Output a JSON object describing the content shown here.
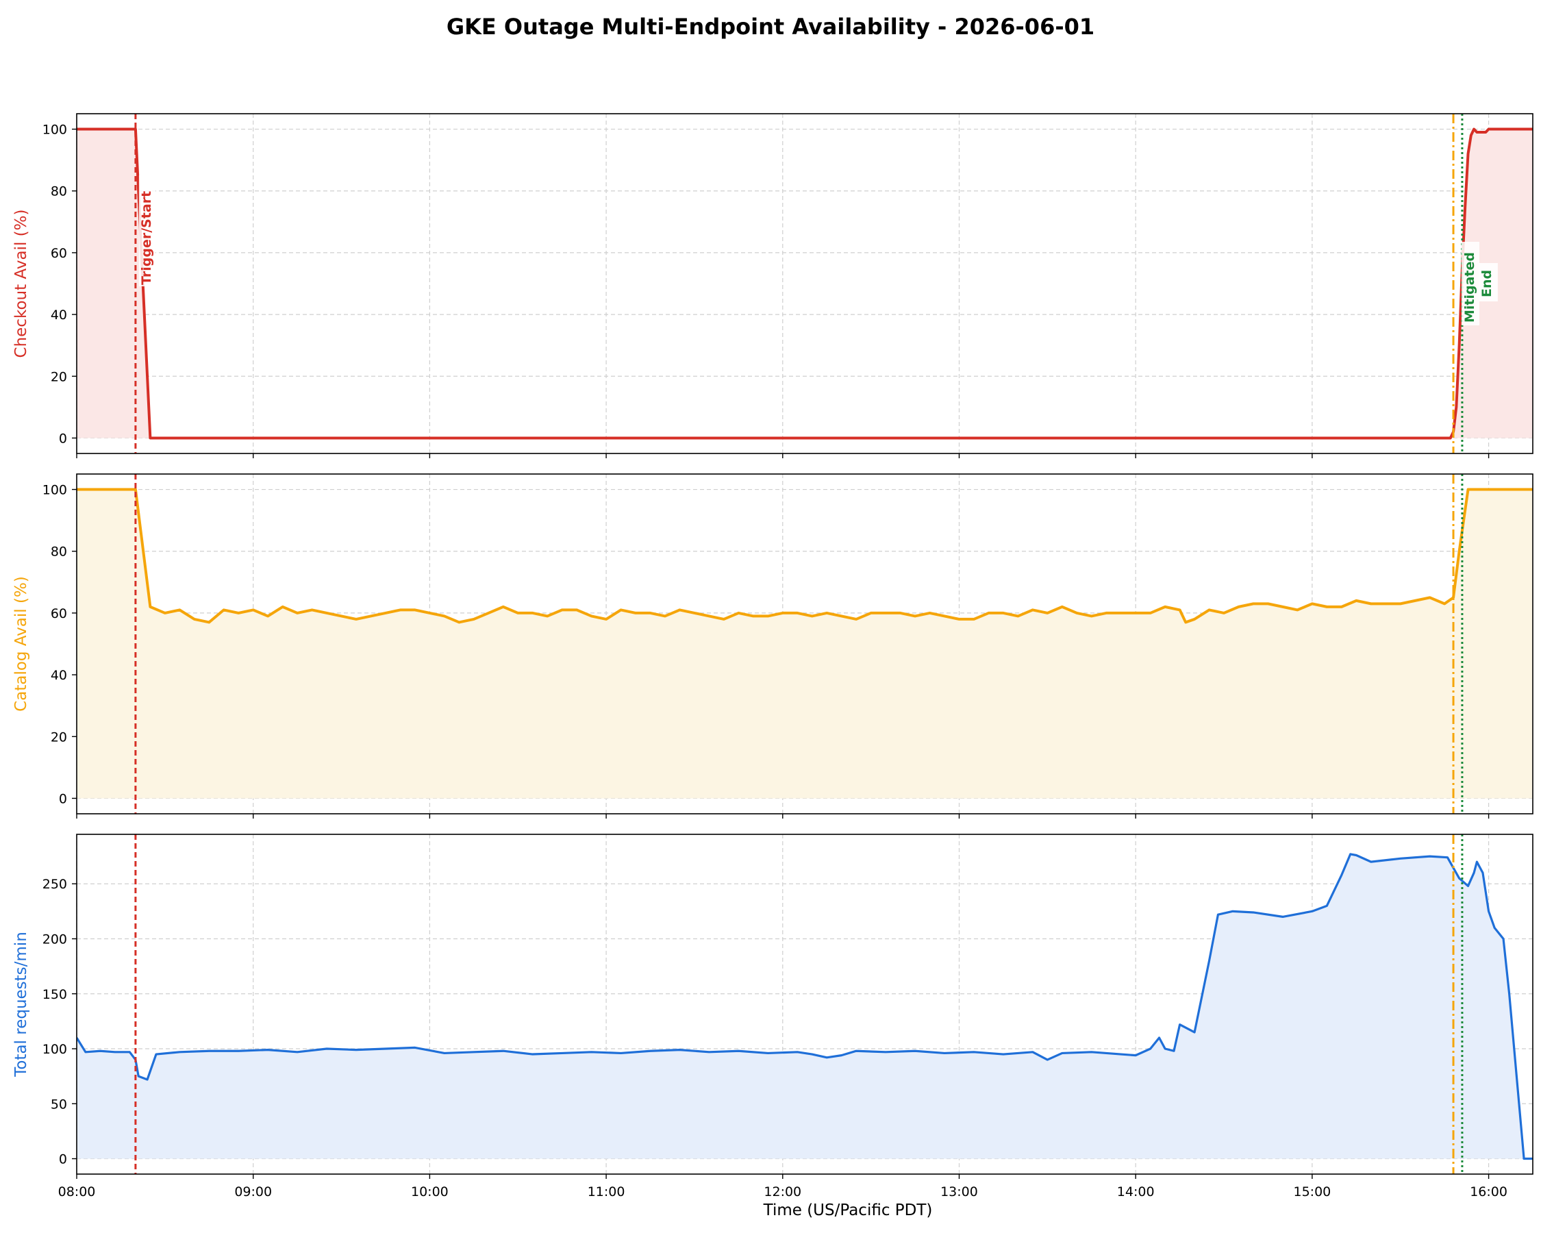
{
  "chart_data": {
    "type": "line",
    "title": "GKE Outage Multi-Endpoint Availability - 2026-06-01",
    "xlabel": "Time (US/Pacific PDT)",
    "x_range": [
      "08:00",
      "16:15"
    ],
    "x_ticks": [
      "08:00",
      "09:00",
      "10:00",
      "11:00",
      "12:00",
      "13:00",
      "14:00",
      "15:00",
      "16:00"
    ],
    "grid": true,
    "colors": {
      "checkout": "#d62f26",
      "catalog": "#f5a50a",
      "requests": "#1f6fd8",
      "trigger": "#d62f26",
      "mitigated": "#f5a50a",
      "end": "#1b8a3a"
    },
    "annotations": [
      {
        "label": "Trigger/Start",
        "time": "08:20",
        "style": "dashed",
        "color_key": "trigger"
      },
      {
        "label": "Mitigated",
        "time": "15:48",
        "style": "dashdot",
        "color_key": "mitigated"
      },
      {
        "label": "End",
        "time": "15:51",
        "style": "dotted",
        "color_key": "end"
      }
    ],
    "panels": [
      {
        "key": "checkout",
        "ylabel": "Checkout Avail (%)",
        "ylim": [
          -5,
          105
        ],
        "y_ticks": [
          0,
          20,
          40,
          60,
          80,
          100
        ],
        "series": [
          {
            "points": [
              [
                "08:00",
                100
              ],
              [
                "08:20",
                100
              ],
              [
                "08:25",
                0
              ],
              [
                "15:47",
                0
              ],
              [
                "15:48",
                2
              ],
              [
                "15:49",
                10
              ],
              [
                "15:50",
                30
              ],
              [
                "15:51",
                55
              ],
              [
                "15:52",
                75
              ],
              [
                "15:53",
                92
              ],
              [
                "15:54",
                98
              ],
              [
                "15:55",
                100
              ],
              [
                "15:56",
                99
              ],
              [
                "15:58",
                99
              ],
              [
                "15:59",
                99
              ],
              [
                "16:00",
                100
              ],
              [
                "16:15",
                100
              ]
            ]
          }
        ]
      },
      {
        "key": "catalog",
        "ylabel": "Catalog Avail (%)",
        "ylim": [
          -5,
          105
        ],
        "y_ticks": [
          0,
          20,
          40,
          60,
          80,
          100
        ],
        "series": [
          {
            "points": [
              [
                "08:00",
                100
              ],
              [
                "08:20",
                100
              ],
              [
                "08:25",
                62
              ],
              [
                "08:30",
                60
              ],
              [
                "08:35",
                61
              ],
              [
                "08:40",
                58
              ],
              [
                "08:45",
                57
              ],
              [
                "08:50",
                61
              ],
              [
                "08:55",
                60
              ],
              [
                "09:00",
                61
              ],
              [
                "09:05",
                59
              ],
              [
                "09:10",
                62
              ],
              [
                "09:15",
                60
              ],
              [
                "09:20",
                61
              ],
              [
                "09:25",
                60
              ],
              [
                "09:30",
                59
              ],
              [
                "09:35",
                58
              ],
              [
                "09:40",
                59
              ],
              [
                "09:45",
                60
              ],
              [
                "09:50",
                61
              ],
              [
                "09:55",
                61
              ],
              [
                "10:00",
                60
              ],
              [
                "10:05",
                59
              ],
              [
                "10:10",
                57
              ],
              [
                "10:15",
                58
              ],
              [
                "10:20",
                60
              ],
              [
                "10:25",
                62
              ],
              [
                "10:30",
                60
              ],
              [
                "10:35",
                60
              ],
              [
                "10:40",
                59
              ],
              [
                "10:45",
                61
              ],
              [
                "10:50",
                61
              ],
              [
                "10:55",
                59
              ],
              [
                "11:00",
                58
              ],
              [
                "11:05",
                61
              ],
              [
                "11:10",
                60
              ],
              [
                "11:15",
                60
              ],
              [
                "11:20",
                59
              ],
              [
                "11:25",
                61
              ],
              [
                "11:30",
                60
              ],
              [
                "11:35",
                59
              ],
              [
                "11:40",
                58
              ],
              [
                "11:45",
                60
              ],
              [
                "11:50",
                59
              ],
              [
                "11:55",
                59
              ],
              [
                "12:00",
                60
              ],
              [
                "12:05",
                60
              ],
              [
                "12:10",
                59
              ],
              [
                "12:15",
                60
              ],
              [
                "12:20",
                59
              ],
              [
                "12:25",
                58
              ],
              [
                "12:30",
                60
              ],
              [
                "12:35",
                60
              ],
              [
                "12:40",
                60
              ],
              [
                "12:45",
                59
              ],
              [
                "12:50",
                60
              ],
              [
                "12:55",
                59
              ],
              [
                "13:00",
                58
              ],
              [
                "13:05",
                58
              ],
              [
                "13:10",
                60
              ],
              [
                "13:15",
                60
              ],
              [
                "13:20",
                59
              ],
              [
                "13:25",
                61
              ],
              [
                "13:30",
                60
              ],
              [
                "13:35",
                62
              ],
              [
                "13:40",
                60
              ],
              [
                "13:45",
                59
              ],
              [
                "13:50",
                60
              ],
              [
                "13:55",
                60
              ],
              [
                "14:00",
                60
              ],
              [
                "14:05",
                60
              ],
              [
                "14:10",
                62
              ],
              [
                "14:15",
                61
              ],
              [
                "14:17",
                57
              ],
              [
                "14:20",
                58
              ],
              [
                "14:25",
                61
              ],
              [
                "14:30",
                60
              ],
              [
                "14:35",
                62
              ],
              [
                "14:40",
                63
              ],
              [
                "14:45",
                63
              ],
              [
                "14:50",
                62
              ],
              [
                "14:55",
                61
              ],
              [
                "15:00",
                63
              ],
              [
                "15:05",
                62
              ],
              [
                "15:10",
                62
              ],
              [
                "15:15",
                64
              ],
              [
                "15:20",
                63
              ],
              [
                "15:25",
                63
              ],
              [
                "15:30",
                63
              ],
              [
                "15:35",
                64
              ],
              [
                "15:40",
                65
              ],
              [
                "15:45",
                63
              ],
              [
                "15:48",
                65
              ],
              [
                "15:50",
                80
              ],
              [
                "15:53",
                100
              ],
              [
                "16:00",
                100
              ],
              [
                "16:15",
                100
              ]
            ]
          }
        ]
      },
      {
        "key": "requests",
        "ylabel": "Total requests/min",
        "ylim": [
          -14,
          295
        ],
        "y_ticks": [
          0,
          50,
          100,
          150,
          200,
          250
        ],
        "series": [
          {
            "points": [
              [
                "08:00",
                110
              ],
              [
                "08:03",
                97
              ],
              [
                "08:08",
                98
              ],
              [
                "08:13",
                97
              ],
              [
                "08:18",
                97
              ],
              [
                "08:20",
                90
              ],
              [
                "08:21",
                75
              ],
              [
                "08:24",
                72
              ],
              [
                "08:27",
                95
              ],
              [
                "08:35",
                97
              ],
              [
                "08:45",
                98
              ],
              [
                "08:55",
                98
              ],
              [
                "09:05",
                99
              ],
              [
                "09:15",
                97
              ],
              [
                "09:25",
                100
              ],
              [
                "09:35",
                99
              ],
              [
                "09:45",
                100
              ],
              [
                "09:55",
                101
              ],
              [
                "10:05",
                96
              ],
              [
                "10:15",
                97
              ],
              [
                "10:25",
                98
              ],
              [
                "10:35",
                95
              ],
              [
                "10:45",
                96
              ],
              [
                "10:55",
                97
              ],
              [
                "11:05",
                96
              ],
              [
                "11:15",
                98
              ],
              [
                "11:25",
                99
              ],
              [
                "11:35",
                97
              ],
              [
                "11:45",
                98
              ],
              [
                "11:55",
                96
              ],
              [
                "12:05",
                97
              ],
              [
                "12:10",
                95
              ],
              [
                "12:15",
                92
              ],
              [
                "12:20",
                94
              ],
              [
                "12:25",
                98
              ],
              [
                "12:35",
                97
              ],
              [
                "12:45",
                98
              ],
              [
                "12:55",
                96
              ],
              [
                "13:05",
                97
              ],
              [
                "13:15",
                95
              ],
              [
                "13:25",
                97
              ],
              [
                "13:30",
                90
              ],
              [
                "13:35",
                96
              ],
              [
                "13:45",
                97
              ],
              [
                "13:55",
                95
              ],
              [
                "14:00",
                94
              ],
              [
                "14:05",
                100
              ],
              [
                "14:08",
                110
              ],
              [
                "14:10",
                100
              ],
              [
                "14:13",
                98
              ],
              [
                "14:15",
                122
              ],
              [
                "14:20",
                115
              ],
              [
                "14:25",
                180
              ],
              [
                "14:28",
                222
              ],
              [
                "14:33",
                225
              ],
              [
                "14:40",
                224
              ],
              [
                "14:50",
                220
              ],
              [
                "15:00",
                225
              ],
              [
                "15:05",
                230
              ],
              [
                "15:10",
                258
              ],
              [
                "15:13",
                277
              ],
              [
                "15:15",
                276
              ],
              [
                "15:20",
                270
              ],
              [
                "15:30",
                273
              ],
              [
                "15:40",
                275
              ],
              [
                "15:46",
                274
              ],
              [
                "15:50",
                255
              ],
              [
                "15:53",
                248
              ],
              [
                "15:55",
                260
              ],
              [
                "15:56",
                270
              ],
              [
                "15:58",
                260
              ],
              [
                "16:00",
                225
              ],
              [
                "16:02",
                210
              ],
              [
                "16:05",
                200
              ],
              [
                "16:07",
                150
              ],
              [
                "16:10",
                60
              ],
              [
                "16:12",
                0
              ],
              [
                "16:15",
                0
              ]
            ]
          }
        ]
      }
    ]
  }
}
